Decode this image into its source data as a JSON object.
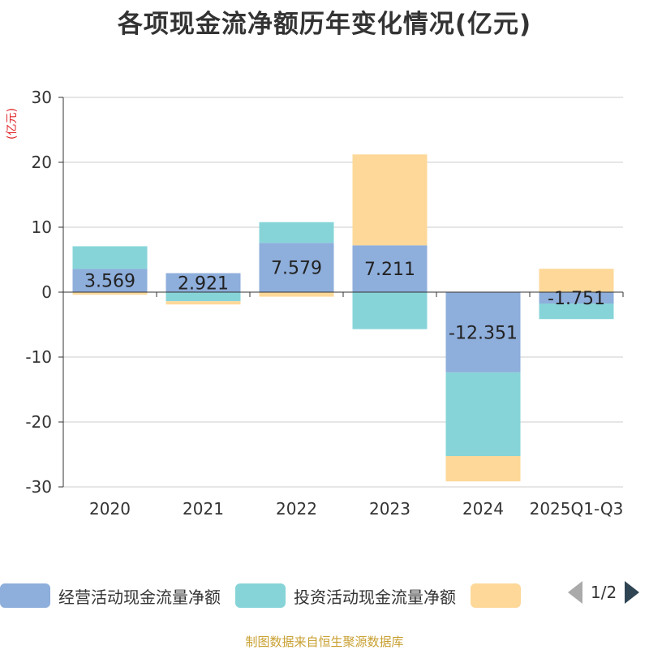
{
  "title": "各项现金流净额历年变化情况(亿元)",
  "unit_label": "(亿元)",
  "source": "制图数据来自恒生聚源数据库",
  "legend": {
    "items": [
      {
        "label": "经营活动现金流量净额",
        "color": "#8eaedb"
      },
      {
        "label": "投资活动现金流量净额",
        "color": "#86d4d8"
      },
      {
        "label": "",
        "color": "#fdd899"
      }
    ],
    "page": "1/2"
  },
  "chart_data": {
    "type": "bar",
    "stacked": true,
    "title": "各项现金流净额历年变化情况(亿元)",
    "ylabel": "(亿元)",
    "ylim": [
      -30,
      30
    ],
    "yticks": [
      30,
      20,
      10,
      0,
      -10,
      -20,
      -30
    ],
    "categories": [
      "2020",
      "2021",
      "2022",
      "2023",
      "2024",
      "2025Q1-Q3"
    ],
    "series": [
      {
        "name": "经营活动现金流量净额",
        "color": "#8eaedb",
        "values": [
          3.569,
          2.921,
          7.579,
          7.211,
          -12.351,
          -1.751
        ],
        "show_labels": true
      },
      {
        "name": "投资活动现金流量净额",
        "color": "#86d4d8",
        "values": [
          3.5,
          -1.4,
          3.2,
          -5.7,
          -12.9,
          -2.4
        ],
        "show_labels": false
      },
      {
        "name": "",
        "color": "#fdd899",
        "values": [
          -0.4,
          -0.5,
          -0.7,
          14.0,
          -3.9,
          3.6
        ],
        "show_labels": false
      }
    ]
  }
}
